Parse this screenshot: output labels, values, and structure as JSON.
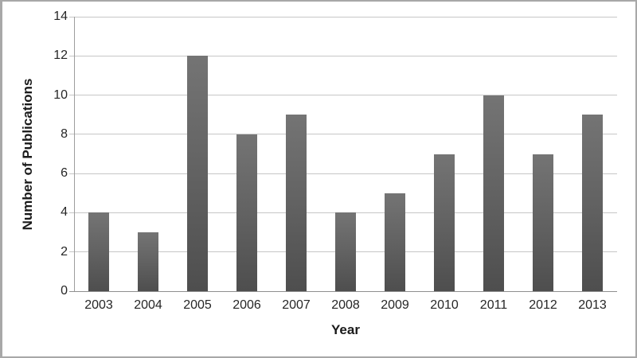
{
  "chart_data": {
    "type": "bar",
    "title": "",
    "categories": [
      "2003",
      "2004",
      "2005",
      "2006",
      "2007",
      "2008",
      "2009",
      "2010",
      "2011",
      "2012",
      "2013"
    ],
    "values": [
      4,
      3,
      12,
      8,
      9,
      4,
      5,
      7,
      10,
      7,
      9
    ],
    "xlabel": "Year",
    "ylabel": "Number of Publications",
    "ylim": [
      0,
      14
    ],
    "ytick_step": 2,
    "ytick_labels": [
      "0",
      "2",
      "4",
      "6",
      "8",
      "10",
      "12",
      "14"
    ],
    "grid": "horizontal-only",
    "legend": "none",
    "colors": {
      "bar_top": "#747474",
      "bar_bottom": "#4e4e4e",
      "gridline": "#c6c6c6",
      "axis_line": "#8f8f8f",
      "text": "#262626",
      "frame_border": "#a8a8a8",
      "background": "#ffffff"
    }
  }
}
